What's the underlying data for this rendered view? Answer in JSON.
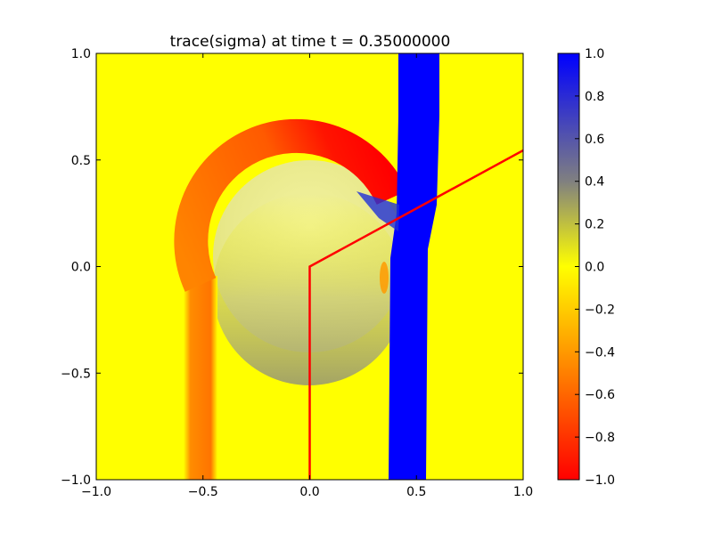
{
  "chart_data": {
    "type": "heatmap",
    "title": "trace(sigma) at time t =     0.35000000",
    "xlabel": "",
    "ylabel": "",
    "xlim": [
      -1.0,
      1.0
    ],
    "ylim": [
      -1.0,
      1.0
    ],
    "x_ticks": [
      "−1.0",
      "−0.5",
      "0.0",
      "0.5",
      "1.0"
    ],
    "x_tick_values": [
      -1.0,
      -0.5,
      0.0,
      0.5,
      1.0
    ],
    "y_ticks": [
      "−1.0",
      "−0.5",
      "0.0",
      "0.5",
      "1.0"
    ],
    "y_tick_values": [
      -1.0,
      -0.5,
      0.0,
      0.5,
      1.0
    ],
    "colorbar": {
      "range": [
        -1.0,
        1.0
      ],
      "ticks": [
        "1.0",
        "0.8",
        "0.6",
        "0.4",
        "0.2",
        "0.0",
        "−0.2",
        "−0.4",
        "−0.6",
        "−0.8",
        "−1.0"
      ],
      "tick_values": [
        1.0,
        0.8,
        0.6,
        0.4,
        0.2,
        0.0,
        -0.2,
        -0.4,
        -0.6,
        -0.8,
        -1.0
      ],
      "colormap": [
        {
          "value": -1.0,
          "color": "#ff0000"
        },
        {
          "value": 0.0,
          "color": "#ffff00"
        },
        {
          "value": 0.4,
          "color": "#808080"
        },
        {
          "value": 1.0,
          "color": "#0000ff"
        }
      ]
    },
    "background_value": 0.0,
    "regions": [
      {
        "name": "left-band",
        "value": -0.4,
        "x_range": [
          -0.58,
          -0.43
        ],
        "y_range": [
          -1.0,
          -0.1
        ]
      },
      {
        "name": "arc",
        "value_from": -0.45,
        "value_to": -0.95,
        "center": [
          -0.2,
          0.0
        ],
        "radius": 0.49,
        "angle_range_deg": [
          25,
          180
        ]
      },
      {
        "name": "blue-jet",
        "value": 1.0,
        "x_top": [
          0.42,
          0.61
        ],
        "x_mid": [
          0.38,
          0.56
        ],
        "x_bottom": [
          0.37,
          0.55
        ]
      },
      {
        "name": "inner-disc",
        "value": 0.05,
        "center": [
          0.0,
          0.05
        ],
        "radius": 0.45
      },
      {
        "name": "shadow-crescent",
        "value": 0.3,
        "center": [
          0.0,
          -0.1
        ],
        "radius": 0.45
      }
    ],
    "overlay_lines": [
      {
        "color": "#ff0000",
        "points": [
          [
            0.0,
            -1.0
          ],
          [
            0.0,
            0.0
          ],
          [
            1.0,
            0.545
          ]
        ]
      }
    ],
    "grid": false
  }
}
